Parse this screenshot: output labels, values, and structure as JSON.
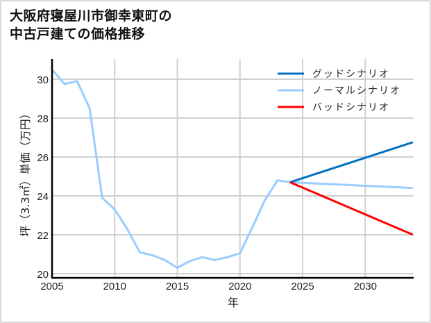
{
  "chart_data": {
    "type": "line",
    "title": "大阪府寝屋川市御幸東町の中古戸建ての価格推移",
    "title_lines": [
      "大阪府寝屋川市御幸東町の",
      "中古戸建ての価格推移"
    ],
    "xlabel": "年",
    "ylabel": "坪（3.3㎡）単価（万円）",
    "xlim": [
      2005,
      2034
    ],
    "ylim": [
      19.7,
      31.0
    ],
    "x_ticks": [
      2005,
      2010,
      2015,
      2020,
      2025,
      2030
    ],
    "y_ticks": [
      20,
      22,
      24,
      26,
      28,
      30
    ],
    "grid": true,
    "legend_position": "upper right",
    "series": [
      {
        "name": "グッドシナリオ",
        "color": "#0070c0",
        "x": [
          2024,
          2034
        ],
        "values": [
          24.7,
          26.8
        ]
      },
      {
        "name": "ノーマルシナリオ",
        "color": "#99ccff",
        "x": [
          2005,
          2006,
          2007,
          2008,
          2009,
          2010,
          2011,
          2012,
          2013,
          2014,
          2015,
          2016,
          2017,
          2018,
          2019,
          2020,
          2021,
          2022,
          2023,
          2024,
          2034
        ],
        "values": [
          30.5,
          29.75,
          29.9,
          28.5,
          23.9,
          23.3,
          22.3,
          21.1,
          20.95,
          20.7,
          20.3,
          20.65,
          20.85,
          20.7,
          20.85,
          21.05,
          22.4,
          23.8,
          24.8,
          24.7,
          24.4
        ]
      },
      {
        "name": "バッドシナリオ",
        "color": "#ff0000",
        "x": [
          2024,
          2034
        ],
        "values": [
          24.7,
          21.95
        ]
      }
    ]
  }
}
